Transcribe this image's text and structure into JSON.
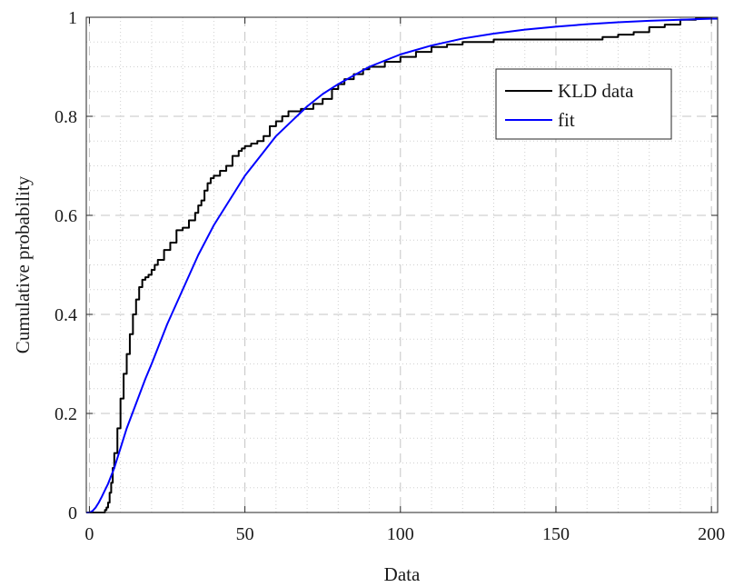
{
  "chart_data": {
    "type": "line",
    "title": "",
    "xlabel": "Data",
    "ylabel": "Cumulative probability",
    "xlim": [
      -1,
      202
    ],
    "ylim": [
      0,
      1
    ],
    "x_ticks": [
      0,
      50,
      100,
      150,
      200
    ],
    "x_tick_labels": [
      "0",
      "50",
      "100",
      "150",
      "200"
    ],
    "y_ticks": [
      0,
      0.2,
      0.4,
      0.6,
      0.8,
      1
    ],
    "y_tick_labels": [
      "0",
      "0.2",
      "0.4",
      "0.6",
      "0.8",
      "1"
    ],
    "grid": true,
    "minor_grid": true,
    "legend": {
      "position": "upper-right",
      "entries": [
        "KLD data",
        "fit"
      ]
    },
    "colors": {
      "KLD data": "#000000",
      "fit": "#0000ff"
    },
    "series": [
      {
        "name": "KLD data",
        "style": "stairs",
        "x": [
          4.5,
          5,
          5.5,
          6,
          6.5,
          7,
          7.5,
          8,
          9,
          10,
          11,
          12,
          13,
          14,
          15,
          16,
          17,
          18,
          19,
          20,
          21,
          22,
          24,
          26,
          28,
          30,
          32,
          34,
          35,
          36,
          37,
          38,
          39,
          40,
          42,
          44,
          46,
          48,
          49,
          50,
          52,
          54,
          56,
          58,
          60,
          62,
          64,
          66,
          68,
          70,
          72,
          75,
          78,
          80,
          82,
          85,
          88,
          90,
          95,
          100,
          105,
          110,
          115,
          120,
          125,
          130,
          140,
          150,
          160,
          165,
          170,
          175,
          180,
          185,
          190,
          195,
          200
        ],
        "y": [
          0.0,
          0.005,
          0.01,
          0.02,
          0.04,
          0.06,
          0.09,
          0.12,
          0.17,
          0.23,
          0.28,
          0.32,
          0.36,
          0.4,
          0.43,
          0.455,
          0.47,
          0.475,
          0.48,
          0.49,
          0.5,
          0.51,
          0.53,
          0.545,
          0.57,
          0.575,
          0.59,
          0.605,
          0.62,
          0.63,
          0.65,
          0.665,
          0.675,
          0.68,
          0.69,
          0.7,
          0.72,
          0.73,
          0.735,
          0.74,
          0.745,
          0.75,
          0.76,
          0.78,
          0.79,
          0.8,
          0.81,
          0.81,
          0.815,
          0.815,
          0.825,
          0.835,
          0.855,
          0.865,
          0.875,
          0.885,
          0.895,
          0.9,
          0.91,
          0.92,
          0.93,
          0.94,
          0.945,
          0.95,
          0.95,
          0.955,
          0.955,
          0.955,
          0.955,
          0.96,
          0.965,
          0.97,
          0.98,
          0.985,
          0.995,
          0.998,
          1.0
        ]
      },
      {
        "name": "fit",
        "style": "smooth",
        "x": [
          -1,
          0,
          1,
          2,
          3,
          4,
          5,
          6,
          8,
          10,
          12,
          15,
          18,
          20,
          25,
          30,
          35,
          40,
          45,
          50,
          55,
          60,
          65,
          70,
          75,
          80,
          90,
          100,
          110,
          120,
          130,
          140,
          150,
          160,
          170,
          180,
          190,
          200,
          202
        ],
        "y": [
          0.0,
          0.0,
          0.003,
          0.01,
          0.02,
          0.032,
          0.045,
          0.058,
          0.09,
          0.13,
          0.17,
          0.22,
          0.27,
          0.3,
          0.38,
          0.45,
          0.52,
          0.58,
          0.63,
          0.68,
          0.72,
          0.76,
          0.79,
          0.82,
          0.845,
          0.865,
          0.9,
          0.925,
          0.943,
          0.957,
          0.967,
          0.975,
          0.981,
          0.986,
          0.99,
          0.993,
          0.995,
          0.997,
          0.997
        ]
      }
    ]
  }
}
